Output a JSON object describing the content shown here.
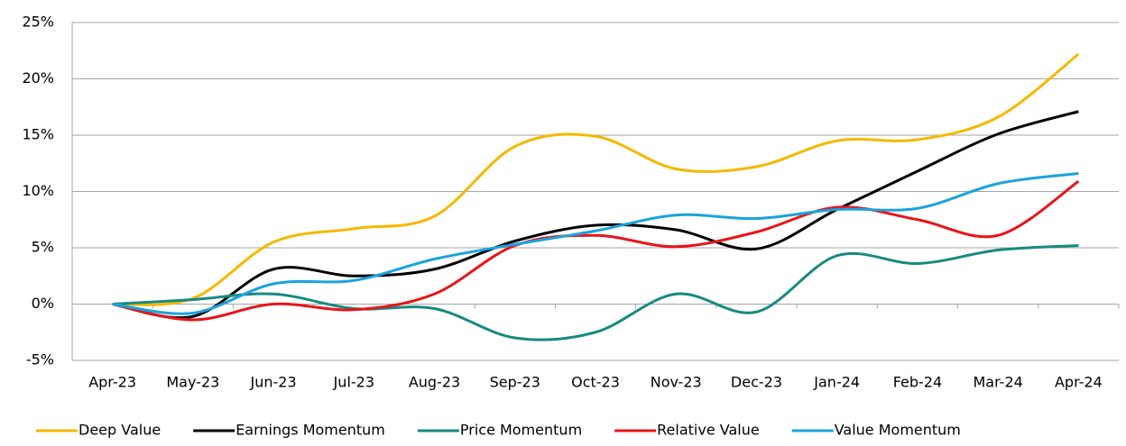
{
  "chart_data": {
    "type": "line",
    "categories": [
      "Apr-23",
      "May-23",
      "Jun-23",
      "Jul-23",
      "Aug-23",
      "Sep-23",
      "Oct-23",
      "Nov-23",
      "Dec-23",
      "Jan-24",
      "Feb-24",
      "Mar-24",
      "Apr-24"
    ],
    "series": [
      {
        "name": "Deep Value",
        "color": "#f5b800",
        "values": [
          0,
          0.5,
          5.5,
          6.7,
          7.8,
          14,
          14.9,
          12,
          12.2,
          14.5,
          14.6,
          16.6,
          22.2
        ]
      },
      {
        "name": "Earnings Momentum",
        "color": "#000000",
        "values": [
          0,
          -1.1,
          3.1,
          2.5,
          3.1,
          5.6,
          7,
          6.6,
          4.9,
          8.4,
          11.8,
          15.1,
          17.1
        ]
      },
      {
        "name": "Price Momentum",
        "color": "#168a80",
        "values": [
          0,
          0.4,
          0.9,
          -0.4,
          -0.4,
          -3.0,
          -2.5,
          0.9,
          -0.7,
          4.3,
          3.6,
          4.8,
          5.2
        ]
      },
      {
        "name": "Relative Value",
        "color": "#e8141a",
        "values": [
          0,
          -1.4,
          0,
          -0.5,
          0.9,
          5.2,
          6.1,
          5.1,
          6.4,
          8.6,
          7.5,
          6.1,
          10.9
        ]
      },
      {
        "name": "Value Momentum",
        "color": "#1aa3dc",
        "values": [
          0,
          -0.8,
          1.8,
          2.1,
          4,
          5.3,
          6.5,
          7.9,
          7.6,
          8.4,
          8.5,
          10.7,
          11.6
        ]
      }
    ],
    "ylim": [
      -5,
      25
    ],
    "yticks": [
      {
        "value": -5,
        "label": "-5%"
      },
      {
        "value": 0,
        "label": "0%"
      },
      {
        "value": 5,
        "label": "5%"
      },
      {
        "value": 10,
        "label": "10%"
      },
      {
        "value": 15,
        "label": "15%"
      },
      {
        "value": 20,
        "label": "20%"
      },
      {
        "value": 25,
        "label": "25%"
      }
    ],
    "grid": true,
    "legend": "bottom",
    "smooth": true
  }
}
